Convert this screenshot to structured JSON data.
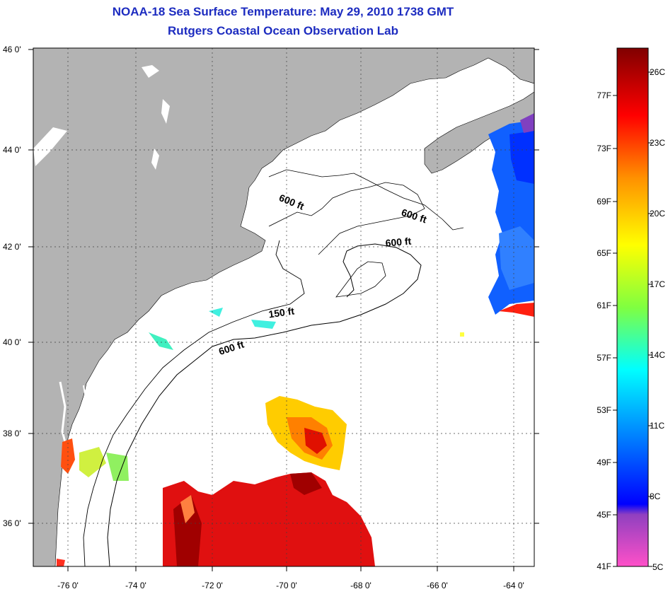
{
  "title_line1": "NOAA-18 Sea Surface Temperature:  May 29, 2010 1738 GMT",
  "title_line2": "Rutgers Coastal Ocean Observation Lab",
  "lat_labels": [
    "46 0'",
    "44 0'",
    "42 0'",
    "40 0'",
    "38 0'",
    "36 0'"
  ],
  "lon_labels": [
    "-76 0'",
    "-74 0'",
    "-72 0'",
    "-70 0'",
    "-68 0'",
    "-66 0'",
    "-64 0'"
  ],
  "depth_labels": [
    "600 ft",
    "600 ft",
    "600 ft",
    "150 ft",
    "600 ft"
  ],
  "colorbar": {
    "celsius": [
      "26C",
      "23C",
      "20C",
      "17C",
      "14C",
      "11C",
      "8C",
      "5C"
    ],
    "fahrenheit": [
      "77F",
      "73F",
      "69F",
      "65F",
      "61F",
      "57F",
      "53F",
      "49F",
      "45F",
      "41F"
    ],
    "colors": [
      "#ff40c0",
      "#a040c0",
      "#0000ff",
      "#0090ff",
      "#00ffff",
      "#80ff60",
      "#ffff00",
      "#ff8000",
      "#ff0000",
      "#800000"
    ]
  },
  "colors": {
    "land": "#b3b3b3",
    "title": "#1d2cc0",
    "grid": "#404040"
  }
}
